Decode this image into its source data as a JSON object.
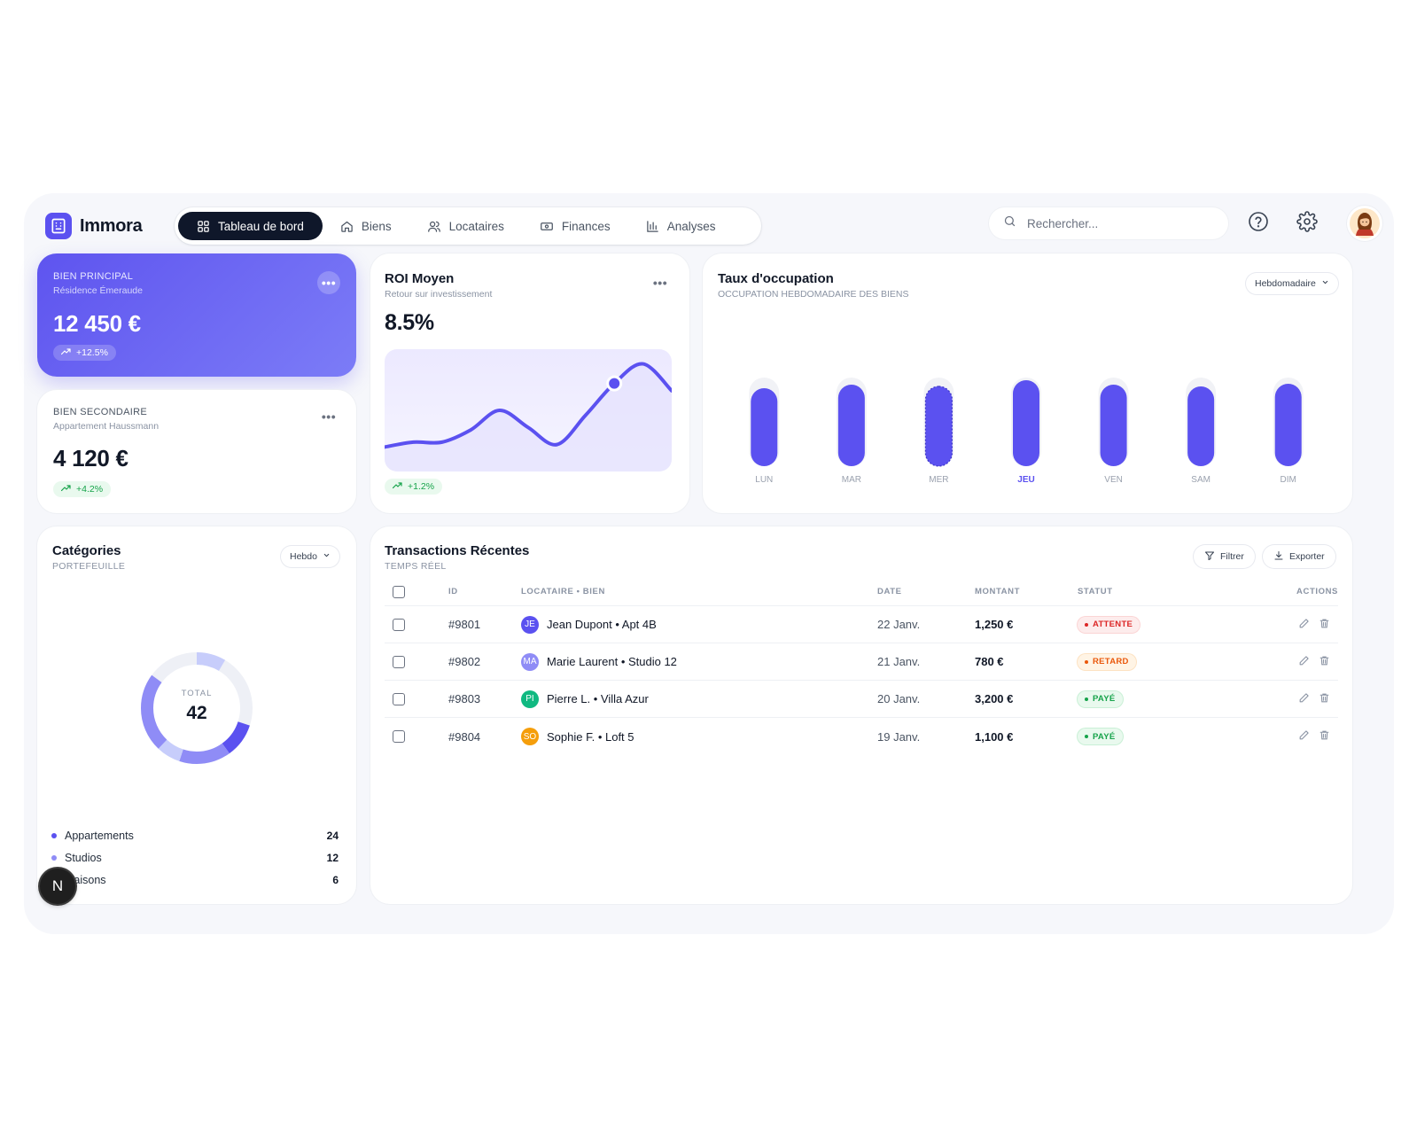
{
  "app": {
    "name": "Immora"
  },
  "nav": {
    "items": [
      {
        "label": "Tableau de bord",
        "icon": "grid-icon",
        "active": true
      },
      {
        "label": "Biens",
        "icon": "home-icon",
        "active": false
      },
      {
        "label": "Locataires",
        "icon": "users-icon",
        "active": false
      },
      {
        "label": "Finances",
        "icon": "banknote-icon",
        "active": false
      },
      {
        "label": "Analyses",
        "icon": "bar-chart-icon",
        "active": false
      }
    ]
  },
  "search": {
    "placeholder": "Rechercher..."
  },
  "header_icons": [
    "help-icon",
    "gear-icon",
    "user-avatar"
  ],
  "primary_property": {
    "label": "BIEN PRINCIPAL",
    "name": "Résidence Émeraude",
    "value": "12 450 €",
    "change": "+12.5%"
  },
  "secondary_property": {
    "label": "BIEN SECONDAIRE",
    "name": "Appartement Haussmann",
    "value": "4 120 €",
    "change": "+4.2%"
  },
  "roi": {
    "title": "ROI Moyen",
    "subtitle": "Retour sur investissement",
    "value": "8.5%",
    "change": "+1.2%"
  },
  "occupancy": {
    "title": "Taux d'occupation",
    "subtitle": "OCCUPATION HEBDOMADAIRE DES BIENS",
    "period": "Hebdomadaire",
    "active_day": "JEU"
  },
  "categories": {
    "title": "Catégories",
    "subtitle": "PORTEFEUILLE",
    "period": "Hebdo",
    "total_label": "TOTAL",
    "total": "42",
    "items": [
      {
        "label": "Appartements",
        "count": "24",
        "color": "#5b51f0"
      },
      {
        "label": "Studios",
        "count": "12",
        "color": "#8f8cf6"
      },
      {
        "label": "Maisons",
        "count": "6",
        "color": "#c7cdfb"
      }
    ]
  },
  "transactions": {
    "title": "Transactions Récentes",
    "subtitle": "TEMPS RÉEL",
    "filter_label": "Filtrer",
    "export_label": "Exporter",
    "columns": {
      "id": "ID",
      "tenant": "LOCATAIRE • BIEN",
      "date": "DATE",
      "amount": "MONTANT",
      "status": "STATUT",
      "actions": "ACTIONS"
    },
    "rows": [
      {
        "id": "#9801",
        "initials": "JE",
        "avatar_color": "#5b51f0",
        "tenant": "Jean Dupont • Apt 4B",
        "date": "22 Janv.",
        "amount": "1,250 €",
        "status": "ATTENTE",
        "status_kind": "pending"
      },
      {
        "id": "#9802",
        "initials": "MA",
        "avatar_color": "#8f8cf6",
        "tenant": "Marie Laurent • Studio 12",
        "date": "21 Janv.",
        "amount": "780 €",
        "status": "RETARD",
        "status_kind": "late"
      },
      {
        "id": "#9803",
        "initials": "PI",
        "avatar_color": "#10b981",
        "tenant": "Pierre L. • Villa Azur",
        "date": "20 Janv.",
        "amount": "3,200 €",
        "status": "PAYÉ",
        "status_kind": "paid"
      },
      {
        "id": "#9804",
        "initials": "SO",
        "avatar_color": "#f59e0b",
        "tenant": "Sophie F. • Loft 5",
        "date": "19 Janv.",
        "amount": "1,100 €",
        "status": "PAYÉ",
        "status_kind": "paid"
      }
    ]
  },
  "dev_badge": {
    "letter": "N"
  },
  "colors": {
    "accent": "#5b51f0",
    "dark": "#0f172a",
    "success": "#16a34a"
  },
  "chart_data": [
    {
      "type": "line",
      "title": "ROI Moyen",
      "x": [
        0,
        1,
        2,
        3,
        4,
        5,
        6,
        7,
        8,
        9,
        10
      ],
      "series": [
        {
          "values": [
            2.0,
            2.4,
            2.4,
            3.4,
            5.0,
            3.6,
            2.2,
            4.6,
            7.2,
            8.8,
            6.6
          ]
        }
      ],
      "highlight_index": 8,
      "ylim": [
        0,
        10
      ],
      "grid": false
    },
    {
      "type": "bar",
      "title": "Taux d'occupation",
      "categories": [
        "LUN",
        "MAR",
        "MER",
        "JEU",
        "VEN",
        "SAM",
        "DIM"
      ],
      "values": [
        88,
        92,
        90,
        97,
        92,
        90,
        93
      ],
      "ylim": [
        0,
        100
      ],
      "highlight": "JEU"
    },
    {
      "type": "pie",
      "title": "Catégories",
      "categories": [
        "Appartements",
        "Studios",
        "Maisons"
      ],
      "values": [
        24,
        12,
        6
      ]
    }
  ]
}
